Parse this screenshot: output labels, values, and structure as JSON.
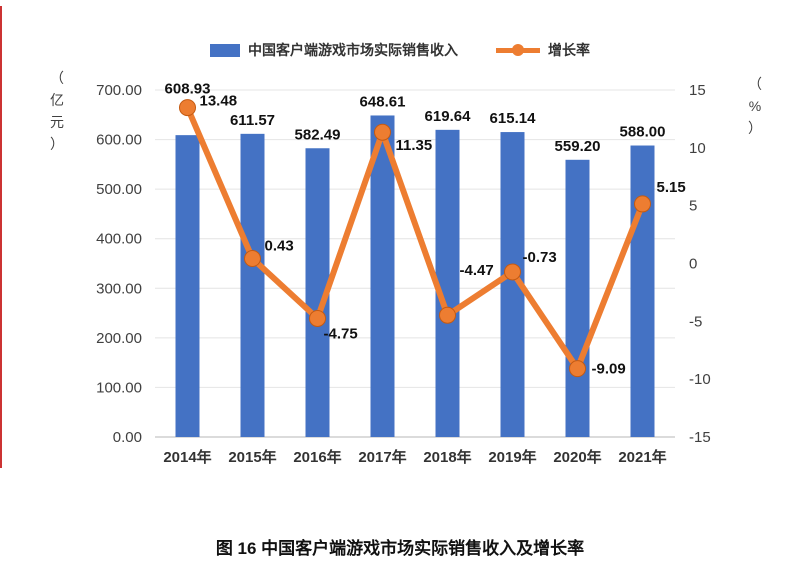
{
  "page": {
    "background": "#ffffff",
    "accent_red_line": "#cc3333"
  },
  "chart_data": {
    "type": "bar",
    "subtype": "bar+line combo",
    "title": "图 16 中国客户端游戏市场实际销售收入及增长率",
    "categories": [
      "2014年",
      "2015年",
      "2016年",
      "2017年",
      "2018年",
      "2019年",
      "2020年",
      "2021年"
    ],
    "series": [
      {
        "name": "中国客户端游戏市场实际销售收入",
        "type": "bar",
        "axis": "left",
        "color": "#4472C4",
        "values": [
          608.93,
          611.57,
          582.49,
          648.61,
          619.64,
          615.14,
          559.2,
          588.0
        ]
      },
      {
        "name": "增长率",
        "type": "line",
        "axis": "right",
        "color": "#ED7D31",
        "marker_stroke": "#c55a11",
        "values": [
          13.48,
          0.43,
          -4.75,
          11.35,
          -4.47,
          -0.73,
          -9.09,
          5.15
        ]
      }
    ],
    "left_axis": {
      "label": "（亿元）",
      "min": 0,
      "max": 700,
      "ticks": [
        "700.00",
        "600.00",
        "500.00",
        "400.00",
        "300.00",
        "200.00",
        "100.00",
        "0.00"
      ]
    },
    "right_axis": {
      "label": "（%）",
      "min": -15,
      "max": 15,
      "ticks": [
        "15",
        "10",
        "5",
        "0",
        "-5",
        "-10",
        "-15"
      ]
    },
    "grid": true,
    "legend_position": "top"
  }
}
